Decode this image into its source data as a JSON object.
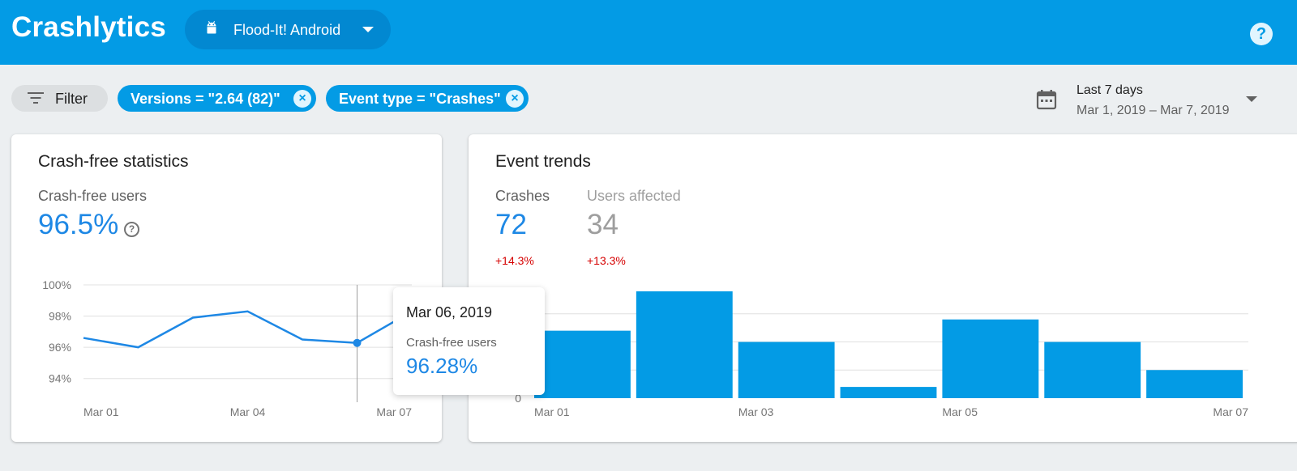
{
  "header": {
    "brand": "Crashlytics",
    "app_name": "Flood-It! Android",
    "app_icon": "android-icon",
    "help_icon": "help-icon",
    "help_glyph": "?"
  },
  "filters": {
    "filter_label": "Filter",
    "chips": [
      {
        "label": "Versions = \"2.64 (82)\""
      },
      {
        "label": "Event type = \"Crashes\""
      }
    ],
    "remove_glyph": "×"
  },
  "date_range": {
    "preset": "Last 7 days",
    "range": "Mar 1, 2019 – Mar 7, 2019"
  },
  "crash_free": {
    "title": "Crash-free statistics",
    "metric_label": "Crash-free users",
    "metric_value": "96.5%",
    "info_glyph": "?"
  },
  "event_trends": {
    "title": "Event trends",
    "crashes_label": "Crashes",
    "crashes_value": "72",
    "crashes_delta": "+14.3%",
    "users_label": "Users affected",
    "users_value": "34",
    "users_delta": "+13.3%"
  },
  "tooltip": {
    "date": "Mar 06, 2019",
    "label": "Crash-free users",
    "value": "96.28%"
  },
  "colors": {
    "brand_blue": "#039be5",
    "accent_blue": "#1e88e5",
    "negative_red": "#d50000"
  },
  "chart_data": [
    {
      "type": "line",
      "x": [
        "Mar 01",
        "Mar 02",
        "Mar 03",
        "Mar 04",
        "Mar 05",
        "Mar 06",
        "Mar 07"
      ],
      "series": [
        {
          "values": [
            96.6,
            96.0,
            97.9,
            98.3,
            96.5,
            96.28,
            98.3
          ]
        }
      ],
      "yticks": [
        "100%",
        "98%",
        "96%",
        "94%"
      ],
      "ytick_values": [
        100,
        98,
        96,
        94
      ],
      "xticks": [
        "Mar 01",
        "Mar 04",
        "Mar 07"
      ],
      "ylim": [
        93,
        100
      ],
      "highlight": "Mar 06",
      "grid": true
    },
    {
      "type": "bar",
      "categories": [
        "Mar 01",
        "Mar 02",
        "Mar 03",
        "Mar 04",
        "Mar 05",
        "Mar 06",
        "Mar 07"
      ],
      "values": [
        12,
        19,
        10,
        2,
        14,
        10,
        5
      ],
      "xticks": [
        "Mar 01",
        "Mar 03",
        "Mar 05",
        "Mar 07"
      ],
      "yticks": [
        "0"
      ],
      "ylim": [
        0,
        19
      ],
      "grid": true
    }
  ]
}
